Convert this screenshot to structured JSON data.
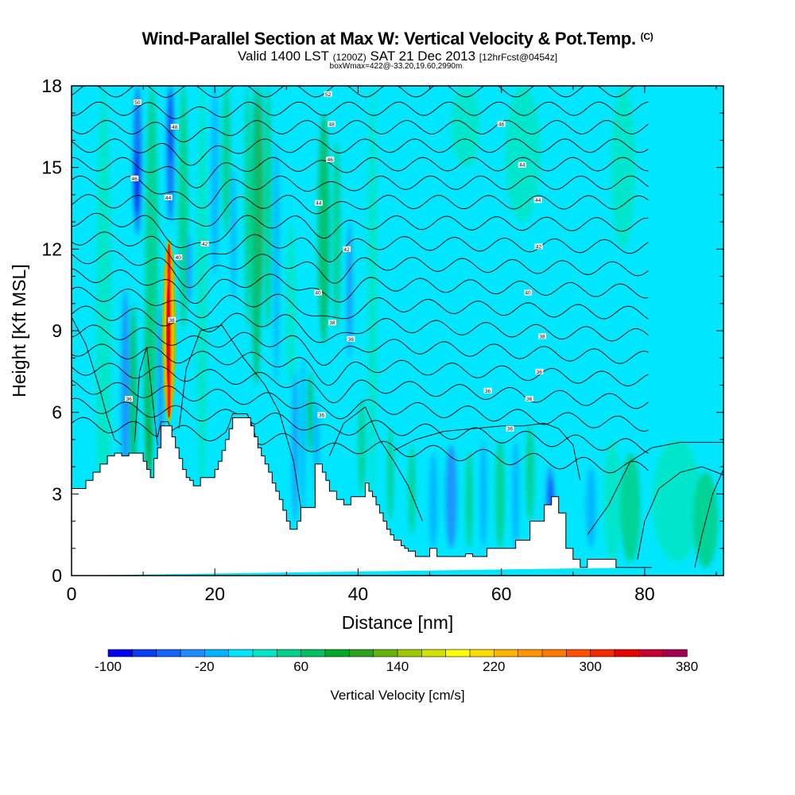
{
  "header": {
    "title": "Wind-Parallel Section at Max W: Vertical Velocity & Pot.Temp.",
    "copyright": "(C)",
    "valid_prefix": "Valid 1400 LST",
    "valid_utc": "(1200Z)",
    "valid_date": "SAT 21 Dec 2013",
    "forecast": "[12hrFcst@0454z]",
    "box_info": "boxWmax=422@-33.20,19.60,2990m"
  },
  "colors": {
    "terrain": "#ffffff",
    "frame": "#000000",
    "contour": "#000000"
  },
  "chart_data": {
    "type": "heatmap",
    "title": "Wind-Parallel Section at Max W: Vertical Velocity & Pot.Temp.",
    "xlabel": "Distance [nm]",
    "ylabel": "Height [Kft MSL]",
    "xlim": [
      0,
      91
    ],
    "ylim": [
      0,
      18
    ],
    "xticks": [
      0,
      20,
      40,
      60,
      80
    ],
    "xtick_labels": [
      "0",
      "20",
      "40",
      "60",
      "80"
    ],
    "yticks": [
      0,
      3,
      6,
      9,
      12,
      15,
      18
    ],
    "ytick_labels": [
      "0",
      "3",
      "6",
      "9",
      "12",
      "15",
      "18"
    ],
    "colorbar": {
      "label": "Vertical Velocity [cm/s]",
      "min": -100,
      "max": 380,
      "tick_values": [
        -100,
        -20,
        60,
        140,
        220,
        300,
        380
      ],
      "tick_labels": [
        "-100",
        "-20",
        "60",
        "140",
        "220",
        "300",
        "380"
      ],
      "colors": [
        "#0000f0",
        "#0a3cf5",
        "#1464fa",
        "#1e8cff",
        "#00b4ff",
        "#00e6ff",
        "#00e6c8",
        "#00d28c",
        "#00be64",
        "#00aa28",
        "#2da01e",
        "#64b40a",
        "#a0c800",
        "#d2e100",
        "#ffff00",
        "#ffdc00",
        "#ffb400",
        "#ff9600",
        "#ff7800",
        "#ff5000",
        "#f52800",
        "#e60000",
        "#c80032",
        "#a00050"
      ]
    },
    "terrain_profile": {
      "x": [
        0,
        2,
        2,
        3,
        3,
        4,
        4,
        5,
        5,
        6,
        6,
        7,
        7,
        8,
        8,
        10,
        10,
        10.5,
        10.5,
        11,
        11,
        11.5,
        11.5,
        12,
        12,
        12.5,
        12.5,
        13,
        13,
        14,
        14,
        14.5,
        14.5,
        15,
        15,
        15.5,
        15.5,
        16,
        16,
        16.5,
        16.5,
        17,
        17,
        17.5,
        17.5,
        18,
        18,
        20,
        20,
        20.5,
        20.5,
        21,
        21,
        21.5,
        21.5,
        22,
        22,
        22.5,
        22.5,
        23,
        23,
        25,
        25,
        25.5,
        25.5,
        26,
        26,
        26.5,
        26.5,
        27,
        27,
        27.5,
        27.5,
        28,
        28,
        28.5,
        28.5,
        29,
        29,
        29.5,
        29.5,
        30,
        30,
        30.5,
        30.5,
        31,
        31,
        31.5,
        31.5,
        32,
        32,
        34,
        34,
        34.5,
        34.5,
        35,
        35,
        35.5,
        35.5,
        36,
        36,
        37,
        37,
        38,
        38,
        38.5,
        38.5,
        39,
        39,
        41,
        41,
        41.5,
        41.5,
        42,
        42,
        42.5,
        42.5,
        43,
        43,
        43.5,
        43.5,
        44,
        44,
        44.5,
        44.5,
        45,
        45,
        45.5,
        45.5,
        46,
        46,
        46.5,
        46.5,
        47,
        47,
        48,
        48,
        49,
        49,
        50,
        50,
        51,
        51,
        52,
        52,
        55,
        55,
        56,
        56,
        58,
        58,
        59,
        59,
        60,
        60,
        62,
        62,
        64,
        64,
        66,
        66,
        67,
        67,
        67.5,
        67.5,
        68,
        68,
        69,
        69,
        70,
        70,
        71,
        71,
        71.5,
        71.5,
        72,
        72,
        75,
        75,
        75.5,
        75.5,
        76,
        76,
        80,
        80,
        81,
        81,
        91
      ],
      "y": [
        3.2,
        3.2,
        3.5,
        3.5,
        3.8,
        3.8,
        4.1,
        4.1,
        4.4,
        4.4,
        4.5,
        4.5,
        4.4,
        4.4,
        4.5,
        4.5,
        4.2,
        4.2,
        3.9,
        3.9,
        3.6,
        3.6,
        4.3,
        4.3,
        4.7,
        4.7,
        5.5,
        5.5,
        5.5,
        5.5,
        5.1,
        5.1,
        4.7,
        4.7,
        4.3,
        4.3,
        3.9,
        3.9,
        3.6,
        3.6,
        3.5,
        3.5,
        3.3,
        3.3,
        3.3,
        3.3,
        3.6,
        3.6,
        3.9,
        3.9,
        4.2,
        4.2,
        4.6,
        4.6,
        5.0,
        5.0,
        5.4,
        5.4,
        5.8,
        5.8,
        5.8,
        5.8,
        5.5,
        5.5,
        5.1,
        5.1,
        4.7,
        4.7,
        4.4,
        4.4,
        4.1,
        4.1,
        3.8,
        3.8,
        3.4,
        3.4,
        3.1,
        3.1,
        2.8,
        2.8,
        2.4,
        2.4,
        2.0,
        2.0,
        1.7,
        1.7,
        1.7,
        1.7,
        2.0,
        2.0,
        2.5,
        2.5,
        4.1,
        4.1,
        4.1,
        4.1,
        3.8,
        3.8,
        3.5,
        3.5,
        3.1,
        3.1,
        2.8,
        2.8,
        2.6,
        2.6,
        2.6,
        2.6,
        2.9,
        2.9,
        3.4,
        3.4,
        3.1,
        3.1,
        2.9,
        2.9,
        2.6,
        2.6,
        2.3,
        2.3,
        2.0,
        2.0,
        1.7,
        1.7,
        1.5,
        1.5,
        1.3,
        1.3,
        1.3,
        1.3,
        1.1,
        1.1,
        1.0,
        1.0,
        0.9,
        0.9,
        0.7,
        0.7,
        0.7,
        0.7,
        1.0,
        1.0,
        0.7,
        0.7,
        0.7,
        0.7,
        0.8,
        0.8,
        0.7,
        0.7,
        1.0,
        1.0,
        1.0,
        1.0,
        1.0,
        1.0,
        1.3,
        1.3,
        2.0,
        2.0,
        2.6,
        2.6,
        2.9,
        2.9,
        2.9,
        2.9,
        2.3,
        2.3,
        1.0,
        1.0,
        0.6,
        0.6,
        0.3,
        0.3,
        0.3,
        0.3,
        0.6,
        0.6,
        0.6,
        0.6,
        0.6,
        0.6,
        0.3,
        0.3,
        0.3,
        0.3
      ]
    },
    "velocity_features": [
      {
        "name": "updraft core",
        "x": 13.6,
        "bottom": 5.8,
        "top": 12.2,
        "peak": 380
      },
      {
        "name": "downdraft band",
        "x": 9.2,
        "bottom": 13.0,
        "top": 18.0,
        "peak": -100
      },
      {
        "name": "downdraft band",
        "x": 13.8,
        "bottom": 13.0,
        "top": 18.0,
        "peak": -100
      },
      {
        "name": "downdraft band",
        "x": 66.8,
        "bottom": 2.2,
        "top": 3.6,
        "peak": -100
      },
      {
        "name": "updraft band",
        "x": 33.3,
        "bottom": 4.8,
        "top": 7.0,
        "peak": 140
      }
    ],
    "theta_contour_labels": [
      {
        "x": 35.8,
        "y": 17.7,
        "label": "52"
      },
      {
        "x": 9.2,
        "y": 17.4,
        "label": "50"
      },
      {
        "x": 36.3,
        "y": 16.6,
        "label": "48"
      },
      {
        "x": 60.0,
        "y": 16.6,
        "label": "46"
      },
      {
        "x": 14.4,
        "y": 16.5,
        "label": "48"
      },
      {
        "x": 36.1,
        "y": 15.3,
        "label": "46"
      },
      {
        "x": 62.9,
        "y": 15.1,
        "label": "44"
      },
      {
        "x": 8.8,
        "y": 14.6,
        "label": "46"
      },
      {
        "x": 13.5,
        "y": 13.9,
        "label": "44"
      },
      {
        "x": 34.5,
        "y": 13.7,
        "label": "44"
      },
      {
        "x": 65.1,
        "y": 13.8,
        "label": "44"
      },
      {
        "x": 18.6,
        "y": 12.2,
        "label": "42"
      },
      {
        "x": 38.4,
        "y": 12.0,
        "label": "42"
      },
      {
        "x": 65.2,
        "y": 12.1,
        "label": "42"
      },
      {
        "x": 14.9,
        "y": 11.7,
        "label": "40"
      },
      {
        "x": 34.4,
        "y": 10.4,
        "label": "40"
      },
      {
        "x": 63.7,
        "y": 10.4,
        "label": "40"
      },
      {
        "x": 14.0,
        "y": 9.4,
        "label": "38"
      },
      {
        "x": 36.4,
        "y": 9.3,
        "label": "38"
      },
      {
        "x": 65.7,
        "y": 8.8,
        "label": "38"
      },
      {
        "x": 39.0,
        "y": 8.7,
        "label": "36"
      },
      {
        "x": 65.3,
        "y": 7.5,
        "label": "36"
      },
      {
        "x": 58.1,
        "y": 6.8,
        "label": "36"
      },
      {
        "x": 63.9,
        "y": 6.5,
        "label": "36"
      },
      {
        "x": 8.0,
        "y": 6.5,
        "label": "36"
      },
      {
        "x": 34.9,
        "y": 5.9,
        "label": "36"
      },
      {
        "x": 61.2,
        "y": 5.4,
        "label": "36"
      }
    ]
  }
}
